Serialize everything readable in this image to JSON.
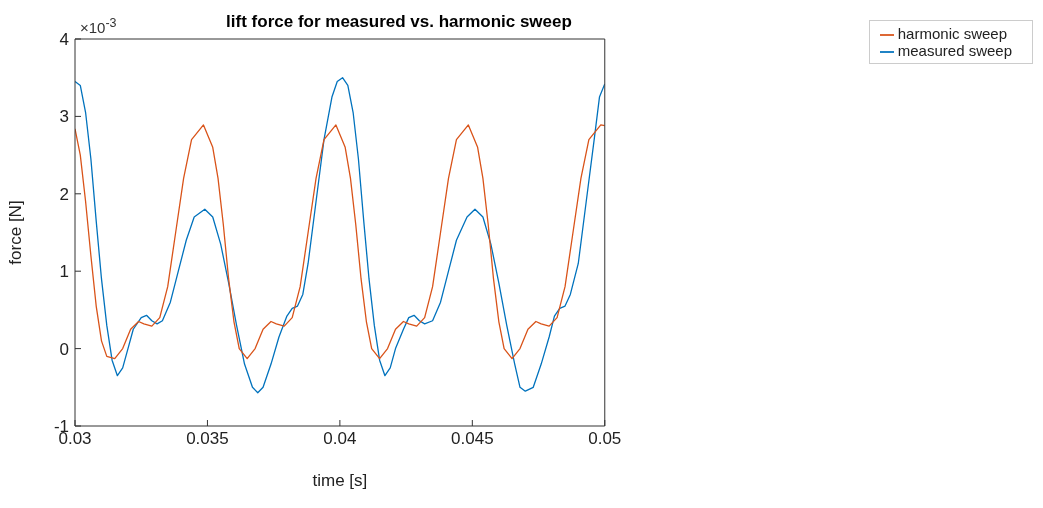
{
  "chart_data": {
    "type": "line",
    "title": "lift force for measured vs. harmonic sweep",
    "xlabel": "time [s]",
    "ylabel": "force [N]",
    "annotations": [
      "×10$^{-3}$"
    ],
    "xlim": [
      0.03,
      0.05
    ],
    "xticks": [
      0.03,
      0.035,
      0.04,
      0.045,
      0.05
    ],
    "ylim": [
      -1,
      4
    ],
    "yticks": [
      -1,
      0,
      1,
      2,
      3,
      4
    ],
    "grid": false,
    "legend": "top right",
    "marker": "none",
    "line_style": "solid",
    "series": [
      {
        "name": "measured sweep",
        "color": "#0072bd",
        "x": [
          0.03,
          0.0302,
          0.0304,
          0.0306,
          0.0308,
          0.031,
          0.0312,
          0.0314,
          0.0316,
          0.0318,
          0.032,
          0.0322,
          0.0325,
          0.0327,
          0.0329,
          0.0331,
          0.0333,
          0.0336,
          0.0339,
          0.0342,
          0.0345,
          0.0349,
          0.0352,
          0.0355,
          0.0358,
          0.0361,
          0.0364,
          0.0367,
          0.0369,
          0.0371,
          0.0374,
          0.0377,
          0.038,
          0.0382,
          0.0384,
          0.0386,
          0.0388,
          0.0391,
          0.0394,
          0.0397,
          0.0399,
          0.0401,
          0.0403,
          0.0405,
          0.0407,
          0.0409,
          0.0411,
          0.0413,
          0.0415,
          0.0417,
          0.0419,
          0.0421,
          0.0424,
          0.0426,
          0.0428,
          0.043,
          0.0432,
          0.0435,
          0.0438,
          0.0441,
          0.0444,
          0.0448,
          0.0451,
          0.0454,
          0.0457,
          0.046,
          0.0463,
          0.0466,
          0.0468,
          0.047,
          0.0473,
          0.0476,
          0.0479,
          0.0481,
          0.0483,
          0.0485,
          0.0487,
          0.049,
          0.0493,
          0.0496,
          0.0498,
          0.05
        ],
        "values": [
          3.45,
          3.4,
          3.05,
          2.45,
          1.65,
          0.9,
          0.3,
          -0.15,
          -0.35,
          -0.25,
          0.0,
          0.25,
          0.4,
          0.43,
          0.36,
          0.32,
          0.36,
          0.6,
          1.0,
          1.4,
          1.7,
          1.8,
          1.7,
          1.35,
          0.85,
          0.3,
          -0.2,
          -0.5,
          -0.57,
          -0.5,
          -0.2,
          0.15,
          0.42,
          0.52,
          0.55,
          0.7,
          1.1,
          1.9,
          2.7,
          3.25,
          3.45,
          3.5,
          3.4,
          3.05,
          2.45,
          1.65,
          0.9,
          0.3,
          -0.15,
          -0.35,
          -0.25,
          0.0,
          0.25,
          0.4,
          0.43,
          0.36,
          0.32,
          0.36,
          0.6,
          1.0,
          1.4,
          1.7,
          1.8,
          1.7,
          1.35,
          0.85,
          0.3,
          -0.2,
          -0.5,
          -0.55,
          -0.5,
          -0.2,
          0.15,
          0.42,
          0.52,
          0.55,
          0.7,
          1.1,
          1.9,
          2.7,
          3.25,
          3.42
        ]
      },
      {
        "name": "harmonic sweep",
        "color": "#d95319",
        "x": [
          0.03,
          0.0302,
          0.0304,
          0.0306,
          0.0308,
          0.031,
          0.0312,
          0.0315,
          0.0318,
          0.0321,
          0.0324,
          0.0326,
          0.0329,
          0.0332,
          0.0335,
          0.0338,
          0.0341,
          0.0344,
          0.03485,
          0.0352,
          0.0354,
          0.0356,
          0.0358,
          0.036,
          0.0362,
          0.0365,
          0.0368,
          0.0371,
          0.0374,
          0.0376,
          0.0379,
          0.0382,
          0.0385,
          0.0388,
          0.0391,
          0.0394,
          0.03985,
          0.0402,
          0.0404,
          0.0406,
          0.0408,
          0.041,
          0.0412,
          0.0415,
          0.0418,
          0.0421,
          0.0424,
          0.0426,
          0.0429,
          0.0432,
          0.0435,
          0.0438,
          0.0441,
          0.0444,
          0.04485,
          0.0452,
          0.0454,
          0.0456,
          0.0458,
          0.046,
          0.0462,
          0.0465,
          0.0468,
          0.0471,
          0.0474,
          0.0476,
          0.0479,
          0.0482,
          0.0485,
          0.0488,
          0.0491,
          0.0494,
          0.04985,
          0.05
        ],
        "values": [
          2.84,
          2.5,
          1.9,
          1.2,
          0.55,
          0.1,
          -0.1,
          -0.13,
          0.0,
          0.25,
          0.35,
          0.32,
          0.29,
          0.4,
          0.8,
          1.5,
          2.2,
          2.7,
          2.89,
          2.6,
          2.2,
          1.6,
          0.9,
          0.35,
          0.0,
          -0.13,
          0.0,
          0.25,
          0.35,
          0.32,
          0.29,
          0.4,
          0.8,
          1.5,
          2.2,
          2.7,
          2.89,
          2.6,
          2.2,
          1.6,
          0.9,
          0.35,
          0.0,
          -0.13,
          0.0,
          0.25,
          0.35,
          0.32,
          0.29,
          0.4,
          0.8,
          1.5,
          2.2,
          2.7,
          2.89,
          2.6,
          2.2,
          1.6,
          0.9,
          0.35,
          0.0,
          -0.13,
          0.0,
          0.25,
          0.35,
          0.32,
          0.29,
          0.4,
          0.8,
          1.5,
          2.2,
          2.7,
          2.89,
          2.88
        ]
      }
    ]
  }
}
